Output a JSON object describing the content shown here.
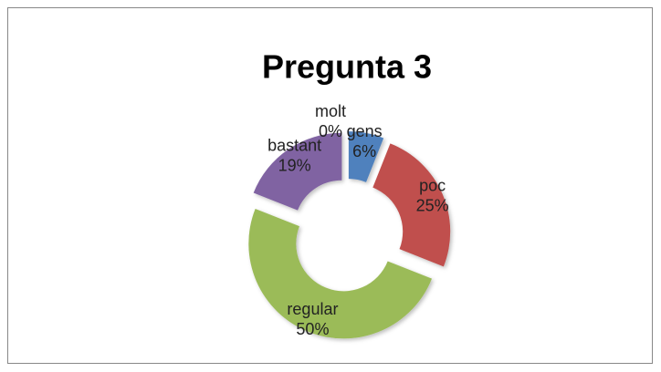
{
  "chart_data": {
    "type": "donut",
    "title": "Pregunta 3",
    "categories": [
      "gens",
      "poc",
      "regular",
      "bastant",
      "molt"
    ],
    "values": [
      6,
      25,
      50,
      19,
      0
    ],
    "value_labels": [
      "6%",
      "25%",
      "50%",
      "19%",
      "0%"
    ],
    "colors": [
      "#4f81bd",
      "#c0504d",
      "#9bbb59",
      "#8064a2",
      "#4bacc6"
    ]
  }
}
